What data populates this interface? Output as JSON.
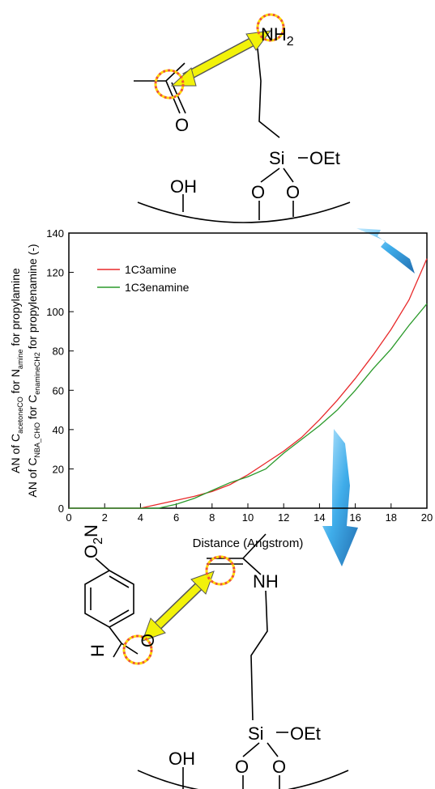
{
  "top_structure": {
    "amine": [
      "NH",
      "2"
    ],
    "carbonyl_o": "O",
    "si": "Si",
    "oet": "OEt",
    "oh": "OH",
    "o1": "O",
    "o2": "O"
  },
  "bottom_structure": {
    "nitro": [
      "O",
      "2",
      "N"
    ],
    "nh": "NH",
    "h": "H",
    "o_ald": "O",
    "si": "Si",
    "oet": "OEt",
    "oh": "OH",
    "o1": "O",
    "o2": "O"
  },
  "chart_data": {
    "type": "line",
    "xlabel": "Distance (Angstrom)",
    "ylabel_lines": [
      [
        {
          "text": "AN of C"
        },
        {
          "sub": "acetoneCO"
        },
        {
          "text": " for N"
        },
        {
          "sub": "amine"
        },
        {
          "text": " for propylamine"
        }
      ],
      [
        {
          "text": "AN of C"
        },
        {
          "sub": "NBA_CHO"
        },
        {
          "text": " for C"
        },
        {
          "sub": "enamineCH2"
        },
        {
          "text": " for propylenamine (-)"
        }
      ]
    ],
    "x": [
      0,
      1,
      2,
      3,
      4,
      5,
      6,
      7,
      8,
      9,
      10,
      11,
      12,
      13,
      14,
      15,
      16,
      17,
      18,
      19,
      20
    ],
    "series": [
      {
        "name": "1C3amine",
        "color": "#e8292a",
        "values": [
          0,
          0,
          0,
          0,
          0,
          2,
          4,
          6,
          8.5,
          12,
          17,
          23,
          29,
          36,
          45,
          55,
          66,
          78,
          91,
          106,
          127
        ]
      },
      {
        "name": "1C3enamine",
        "color": "#2a9a2a",
        "values": [
          0,
          0,
          0,
          0,
          0,
          0,
          2,
          5,
          9,
          13,
          16,
          20,
          28,
          35,
          42,
          50,
          60,
          71,
          81,
          93,
          104
        ]
      }
    ],
    "xlim": [
      0,
      20
    ],
    "xticks": [
      0,
      2,
      4,
      6,
      8,
      10,
      12,
      14,
      16,
      18,
      20
    ],
    "ylim": [
      0,
      140
    ],
    "yticks": [
      0,
      20,
      40,
      60,
      80,
      100,
      120,
      140
    ],
    "legend": "upper left"
  }
}
